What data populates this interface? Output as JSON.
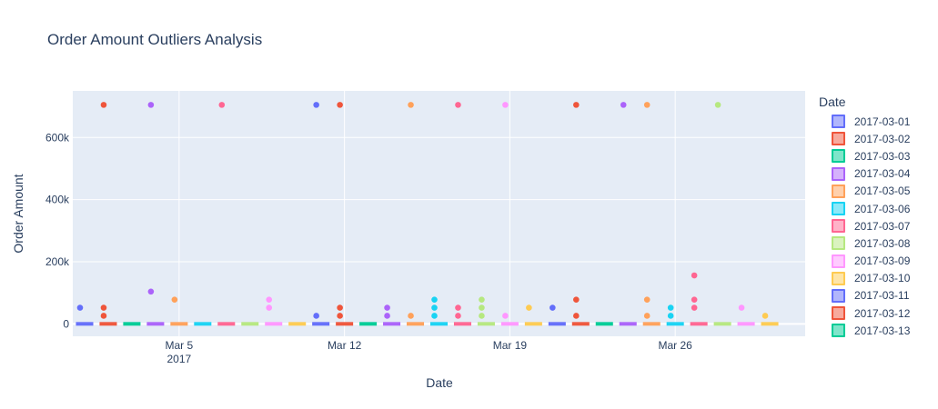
{
  "chart_data": {
    "type": "box",
    "title": "Order Amount Outliers Analysis",
    "xlabel": "Date",
    "ylabel": "Order Amount",
    "ylim": [
      -40000,
      750000
    ],
    "yticks": [
      0,
      200000,
      400000,
      600000
    ],
    "ytick_labels": [
      "0",
      "200k",
      "400k",
      "600k"
    ],
    "xlim": [
      "2017-03-01",
      "2017-03-31"
    ],
    "xticks": [
      "2017-03-05",
      "2017-03-12",
      "2017-03-19",
      "2017-03-26"
    ],
    "xtick_labels": [
      "Mar 5",
      "Mar 12",
      "Mar 19",
      "Mar 26"
    ],
    "xtick_year_label": "2017",
    "grid": true,
    "legend_title": "Date",
    "legend_position": "right",
    "series": [
      {
        "name": "2017-03-01",
        "color": "#636efa",
        "x": [
          "2017-03-01",
          "2017-03-11",
          "2017-03-21"
        ],
        "outliers": [
          [
            52000
          ],
          [
            705000,
            26000
          ],
          [
            52000
          ]
        ]
      },
      {
        "name": "2017-03-02",
        "color": "#EF553B",
        "x": [
          "2017-03-02",
          "2017-03-12",
          "2017-03-22"
        ],
        "outliers": [
          [
            705000,
            52000,
            26000
          ],
          [
            705000,
            52000,
            26000
          ],
          [
            705000,
            78000,
            26000
          ]
        ]
      },
      {
        "name": "2017-03-03",
        "color": "#00cc96",
        "x": [
          "2017-03-03",
          "2017-03-13",
          "2017-03-23"
        ],
        "outliers": [
          [],
          [],
          []
        ]
      },
      {
        "name": "2017-03-04",
        "color": "#ab63fa",
        "x": [
          "2017-03-04",
          "2017-03-14",
          "2017-03-24"
        ],
        "outliers": [
          [
            705000,
            104000
          ],
          [
            52000,
            26000
          ],
          [
            705000
          ]
        ]
      },
      {
        "name": "2017-03-05",
        "color": "#FFA15A",
        "x": [
          "2017-03-05",
          "2017-03-15",
          "2017-03-25"
        ],
        "outliers": [
          [
            78000
          ],
          [
            705000,
            26000
          ],
          [
            705000,
            78000,
            26000
          ]
        ]
      },
      {
        "name": "2017-03-06",
        "color": "#19d3f3",
        "x": [
          "2017-03-06",
          "2017-03-16",
          "2017-03-26"
        ],
        "outliers": [
          [],
          [
            78000,
            52000,
            26000
          ],
          [
            52000,
            26000
          ]
        ]
      },
      {
        "name": "2017-03-07",
        "color": "#FF6692",
        "x": [
          "2017-03-07",
          "2017-03-17",
          "2017-03-27"
        ],
        "outliers": [
          [
            705000
          ],
          [
            705000,
            52000,
            26000
          ],
          [
            156000,
            78000,
            52000
          ]
        ]
      },
      {
        "name": "2017-03-08",
        "color": "#B6E880",
        "x": [
          "2017-03-08",
          "2017-03-18",
          "2017-03-28"
        ],
        "outliers": [
          [],
          [
            78000,
            52000,
            26000
          ],
          [
            705000
          ]
        ]
      },
      {
        "name": "2017-03-09",
        "color": "#FF97FF",
        "x": [
          "2017-03-09",
          "2017-03-19",
          "2017-03-29"
        ],
        "outliers": [
          [
            78000,
            52000
          ],
          [
            705000,
            26000
          ],
          [
            52000
          ]
        ]
      },
      {
        "name": "2017-03-10",
        "color": "#FECB52",
        "x": [
          "2017-03-10",
          "2017-03-20",
          "2017-03-30"
        ],
        "outliers": [
          [],
          [
            52000
          ],
          [
            26000
          ]
        ]
      },
      {
        "name": "2017-03-11",
        "color": "#636efa",
        "x": [],
        "outliers": []
      },
      {
        "name": "2017-03-12",
        "color": "#EF553B",
        "x": [],
        "outliers": []
      },
      {
        "name": "2017-03-13",
        "color": "#00cc96",
        "x": [],
        "outliers": []
      }
    ]
  }
}
